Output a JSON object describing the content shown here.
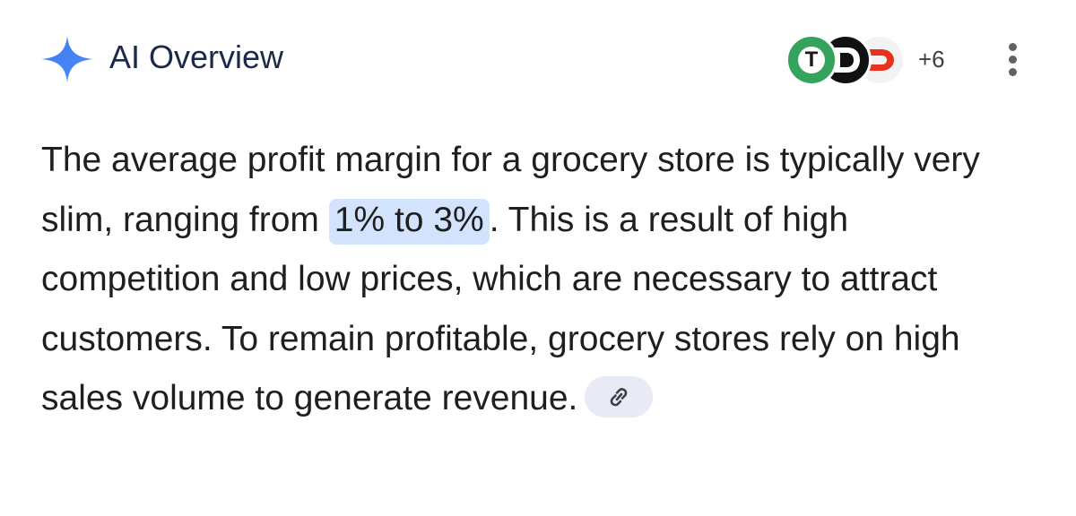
{
  "header": {
    "title": "AI Overview",
    "spark_icon": "sparkle-icon",
    "sources": [
      {
        "icon": "source-favicon-t",
        "letter": "T",
        "color": "#35a35c"
      },
      {
        "icon": "source-favicon-d",
        "letter": "D",
        "color": "#111111"
      },
      {
        "icon": "source-favicon-d-red",
        "letter": "D",
        "color": "#e8321e"
      }
    ],
    "more_sources": "+6",
    "menu_icon": "more-vert-icon"
  },
  "answer": {
    "part1": "The average profit margin for a grocery store is typically very slim, ranging from ",
    "highlight": "1% to 3%",
    "part2": ". This is a result of high competition and low prices, which are necessary to attract customers. To remain profitable, grocery stores rely on high sales volume to generate revenue.",
    "link_icon": "link-icon"
  },
  "colors": {
    "title": "#1b2a4a",
    "highlight": "#d3e3fd",
    "chip": "#e8eaf6",
    "spark_blue": "#4285f4"
  }
}
